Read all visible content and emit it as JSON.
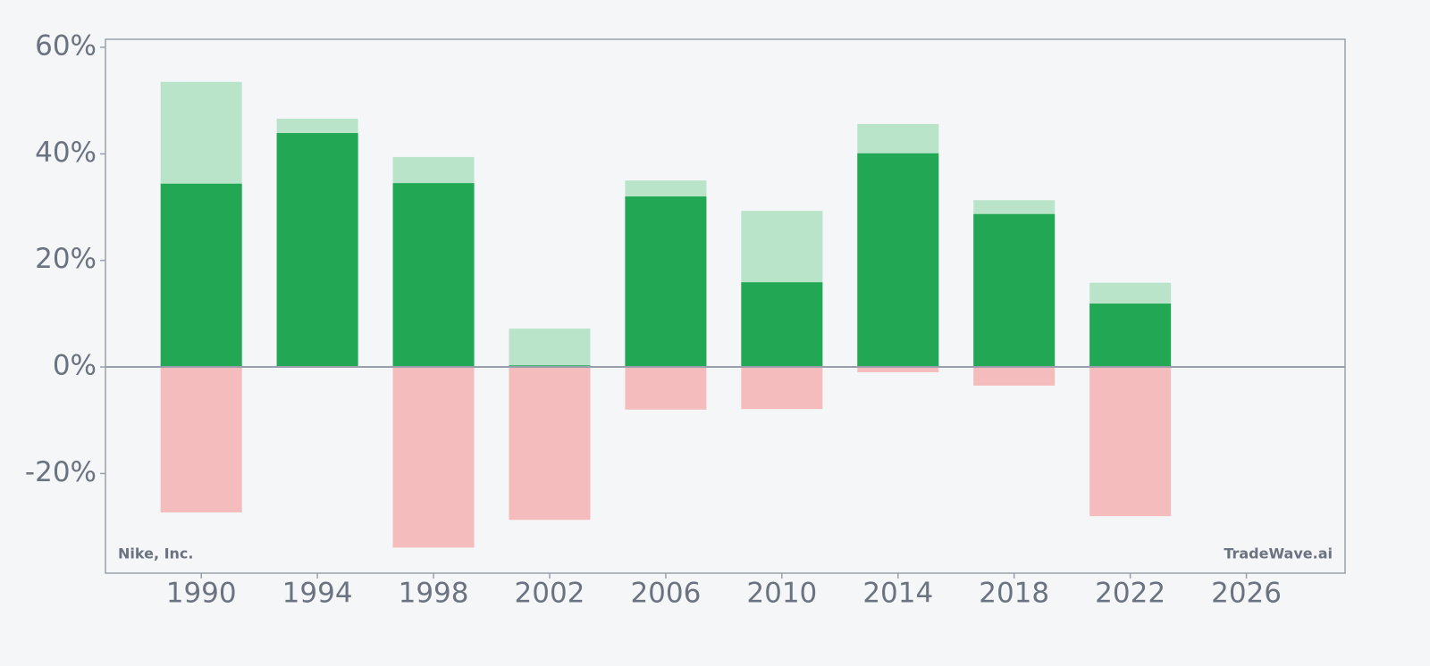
{
  "chart_data": {
    "type": "bar",
    "annotations": [
      "Nike, Inc.",
      "TradeWave.ai"
    ],
    "x": [
      1990,
      1994,
      1998,
      2002,
      2006,
      2010,
      2014,
      2018,
      2022
    ],
    "series": [
      {
        "color": "#b9e4c9",
        "values": [
          53.5,
          46.6,
          39.4,
          7.2,
          35.0,
          29.3,
          45.6,
          31.3,
          15.8
        ]
      },
      {
        "color": "#22a854",
        "values": [
          34.4,
          43.9,
          34.5,
          0.3,
          32.0,
          15.9,
          40.1,
          28.7,
          11.9
        ]
      },
      {
        "color": "#f4bcbc",
        "values": [
          -27.3,
          0,
          -33.9,
          -28.7,
          -8.0,
          -7.9,
          -1.0,
          -3.5,
          -28.0
        ]
      }
    ],
    "xlim": [
      1986.7,
      2029.4
    ],
    "xticks": [
      1990,
      1994,
      1998,
      2002,
      2006,
      2010,
      2014,
      2018,
      2022,
      2026
    ],
    "ylim": [
      -38.7,
      61.5
    ],
    "yticks": [
      {
        "value": -20,
        "label": "-20%"
      },
      {
        "value": 0,
        "label": "0%"
      },
      {
        "value": 20,
        "label": "20%"
      },
      {
        "value": 40,
        "label": "40%"
      },
      {
        "value": 60,
        "label": "60%"
      }
    ]
  }
}
